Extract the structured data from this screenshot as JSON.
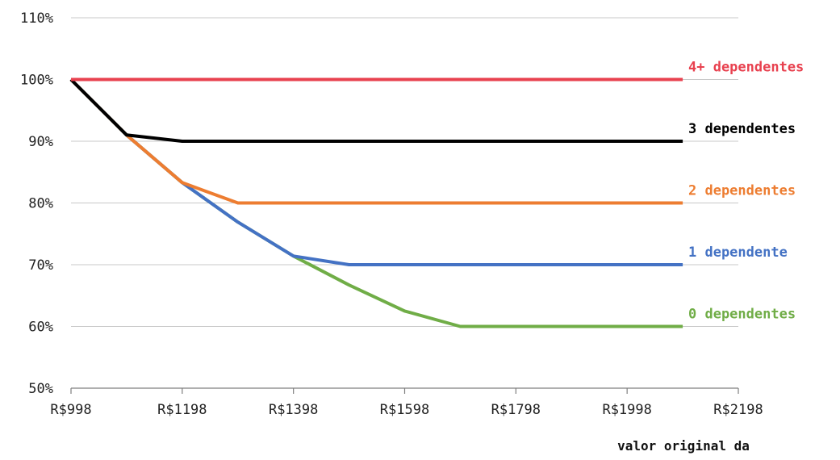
{
  "chart_data": {
    "type": "line",
    "title": "",
    "xlabel": "valor original da",
    "ylabel": "",
    "x_ticks": [
      998,
      1198,
      1398,
      1598,
      1798,
      1998,
      2198
    ],
    "x_tick_labels": [
      "R$998",
      "R$1198",
      "R$1398",
      "R$1598",
      "R$1798",
      "R$1998",
      "R$2198"
    ],
    "xlim": [
      998,
      2198
    ],
    "y_ticks": [
      50,
      60,
      70,
      80,
      90,
      100,
      110
    ],
    "y_tick_labels": [
      "50%",
      "60%",
      "70%",
      "80%",
      "90%",
      "100%",
      "110%"
    ],
    "ylim": [
      50,
      110
    ],
    "grid": true,
    "legend": "inline labels at right end of each line",
    "series": [
      {
        "name": "4+ dependentes",
        "color": "#e8414f",
        "x": [
          998,
          2098
        ],
        "y": [
          100,
          100
        ]
      },
      {
        "name": "3 dependentes",
        "color": "#000000",
        "x": [
          998,
          1098,
          1198,
          2098
        ],
        "y": [
          100,
          91,
          90,
          90
        ]
      },
      {
        "name": "2 dependentes",
        "color": "#ed7d31",
        "x": [
          998,
          1098,
          1198,
          1298,
          2098
        ],
        "y": [
          100,
          91,
          83.3,
          80,
          80
        ]
      },
      {
        "name": "1 dependente",
        "color": "#4472c4",
        "x": [
          998,
          1098,
          1198,
          1298,
          1398,
          1498,
          2098
        ],
        "y": [
          100,
          91,
          83.3,
          76.9,
          71.4,
          70,
          70
        ]
      },
      {
        "name": "0 dependentes",
        "color": "#70ad47",
        "x": [
          998,
          1098,
          1198,
          1298,
          1398,
          1498,
          1598,
          1698,
          2098
        ],
        "y": [
          100,
          91,
          83.3,
          76.9,
          71.4,
          66.7,
          62.5,
          60,
          60
        ]
      }
    ]
  }
}
